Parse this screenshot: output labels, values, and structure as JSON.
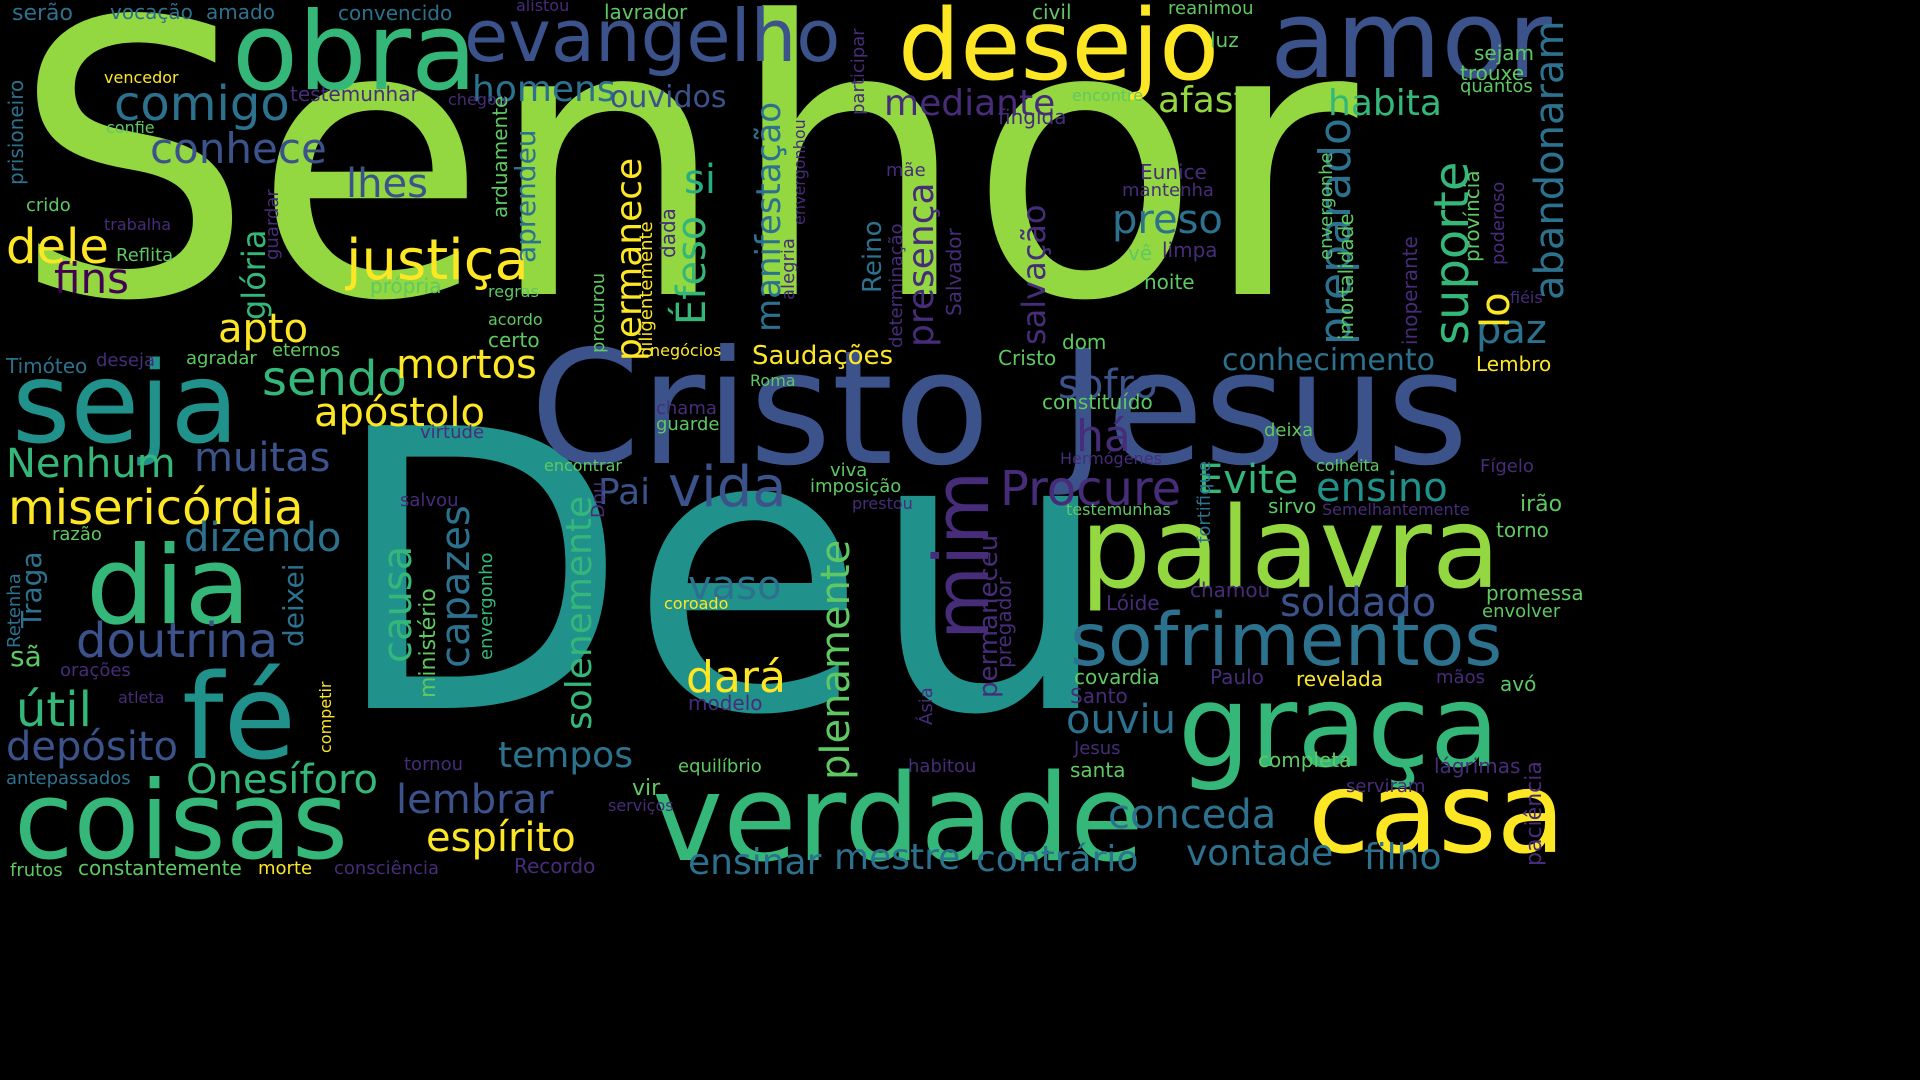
{
  "palette": {
    "background": "#000000",
    "colors": [
      "#93d741",
      "#21918c",
      "#3b528b",
      "#2c728e",
      "#fde725",
      "#5ec962",
      "#35b779",
      "#440154",
      "#472c7a",
      "#27ad81",
      "#1f9e89"
    ]
  },
  "words": [
    {
      "text": "Senhor",
      "color": "#93d741",
      "vertical": false
    },
    {
      "text": "Deu",
      "color": "#21918c",
      "vertical": false
    },
    {
      "text": "Cristo",
      "color": "#3b528b",
      "vertical": false
    },
    {
      "text": "Jesus",
      "color": "#3b528b",
      "vertical": false
    },
    {
      "text": "obra",
      "color": "#35b779",
      "vertical": false
    },
    {
      "text": "evangelho",
      "color": "#3b528b",
      "vertical": false
    },
    {
      "text": "desejo",
      "color": "#fde725",
      "vertical": false
    },
    {
      "text": "amor",
      "color": "#3b528b",
      "vertical": false
    },
    {
      "text": "seja",
      "color": "#21918c",
      "vertical": false
    },
    {
      "text": "dia",
      "color": "#35b779",
      "vertical": false
    },
    {
      "text": "fé",
      "color": "#21918c",
      "vertical": false
    },
    {
      "text": "coisas",
      "color": "#35b779",
      "vertical": false
    },
    {
      "text": "verdade",
      "color": "#35b779",
      "vertical": false
    },
    {
      "text": "casa",
      "color": "#fde725",
      "vertical": false
    },
    {
      "text": "palavra",
      "color": "#93d741",
      "vertical": false
    },
    {
      "text": "graça",
      "color": "#35b779",
      "vertical": false
    },
    {
      "text": "sofrimentos",
      "color": "#2c728e",
      "vertical": false
    },
    {
      "text": "comigo",
      "color": "#2c728e",
      "vertical": false
    },
    {
      "text": "homens",
      "color": "#2c728e",
      "vertical": false
    },
    {
      "text": "ouvidos",
      "color": "#3b528b",
      "vertical": false
    },
    {
      "text": "mediante",
      "color": "#472c7a",
      "vertical": false
    },
    {
      "text": "afaste",
      "color": "#93d741",
      "vertical": false
    },
    {
      "text": "habita",
      "color": "#35b779",
      "vertical": false
    },
    {
      "text": "conhece",
      "color": "#3b528b",
      "vertical": false
    },
    {
      "text": "lhes",
      "color": "#3b528b",
      "vertical": false
    },
    {
      "text": "justiça",
      "color": "#fde725",
      "vertical": false
    },
    {
      "text": "dele",
      "color": "#fde725",
      "vertical": false
    },
    {
      "text": "fins",
      "color": "#440154",
      "vertical": false
    },
    {
      "text": "apto",
      "color": "#fde725",
      "vertical": false
    },
    {
      "text": "sendo",
      "color": "#35b779",
      "vertical": false
    },
    {
      "text": "mortos",
      "color": "#fde725",
      "vertical": false
    },
    {
      "text": "apóstolo",
      "color": "#fde725",
      "vertical": false
    },
    {
      "text": "Nenhum",
      "color": "#35b779",
      "vertical": false
    },
    {
      "text": "muitas",
      "color": "#3b528b",
      "vertical": false
    },
    {
      "text": "misericórdia",
      "color": "#fde725",
      "vertical": false
    },
    {
      "text": "dizendo",
      "color": "#2c728e",
      "vertical": false
    },
    {
      "text": "doutrina",
      "color": "#3b528b",
      "vertical": false
    },
    {
      "text": "útil",
      "color": "#35b779",
      "vertical": false
    },
    {
      "text": "depósito",
      "color": "#3b528b",
      "vertical": false
    },
    {
      "text": "Onesíforo",
      "color": "#35b779",
      "vertical": false
    },
    {
      "text": "lembrar",
      "color": "#3b528b",
      "vertical": false
    },
    {
      "text": "espírito",
      "color": "#fde725",
      "vertical": false
    },
    {
      "text": "tempos",
      "color": "#2c728e",
      "vertical": false
    },
    {
      "text": "vida",
      "color": "#3b528b",
      "vertical": false
    },
    {
      "text": "Pai",
      "color": "#3b528b",
      "vertical": false
    },
    {
      "text": "vaso",
      "color": "#2c728e",
      "vertical": false
    },
    {
      "text": "dará",
      "color": "#fde725",
      "vertical": false
    },
    {
      "text": "Procure",
      "color": "#472c7a",
      "vertical": false
    },
    {
      "text": "sofro",
      "color": "#3b528b",
      "vertical": false
    },
    {
      "text": "há",
      "color": "#472c7a",
      "vertical": false
    },
    {
      "text": "Evite",
      "color": "#35b779",
      "vertical": false
    },
    {
      "text": "ensino",
      "color": "#21918c",
      "vertical": false
    },
    {
      "text": "preso",
      "color": "#2c728e",
      "vertical": false
    },
    {
      "text": "conhecimento",
      "color": "#2c728e",
      "vertical": false
    },
    {
      "text": "paz",
      "color": "#2c728e",
      "vertical": false
    },
    {
      "text": "soldado",
      "color": "#3b528b",
      "vertical": false
    },
    {
      "text": "ouviu",
      "color": "#2c728e",
      "vertical": false
    },
    {
      "text": "conceda",
      "color": "#2c728e",
      "vertical": false
    },
    {
      "text": "ensinar",
      "color": "#2c728e",
      "vertical": false
    },
    {
      "text": "mestre",
      "color": "#2c728e",
      "vertical": false
    },
    {
      "text": "contrário",
      "color": "#2c728e",
      "vertical": false
    },
    {
      "text": "vontade",
      "color": "#2c728e",
      "vertical": false
    },
    {
      "text": "filho",
      "color": "#2c728e",
      "vertical": false
    },
    {
      "text": "Saudações",
      "color": "#fde725",
      "vertical": false
    },
    {
      "text": "si",
      "color": "#27ad81",
      "vertical": false
    },
    {
      "text": "serão",
      "color": "#2c728e",
      "vertical": false
    },
    {
      "text": "vocação",
      "color": "#2c728e",
      "vertical": false
    },
    {
      "text": "amado",
      "color": "#2c728e",
      "vertical": false
    },
    {
      "text": "convencido",
      "color": "#2c728e",
      "vertical": false
    },
    {
      "text": "alistou",
      "color": "#472c7a",
      "vertical": false
    },
    {
      "text": "lavrador",
      "color": "#5ec962",
      "vertical": false
    },
    {
      "text": "civil",
      "color": "#5ec962",
      "vertical": false
    },
    {
      "text": "reanimou",
      "color": "#5ec962",
      "vertical": false
    },
    {
      "text": "luz",
      "color": "#5ec962",
      "vertical": false
    },
    {
      "text": "sejam",
      "color": "#5ec962",
      "vertical": false
    },
    {
      "text": "trouxe",
      "color": "#5ec962",
      "vertical": false
    },
    {
      "text": "quantos",
      "color": "#5ec962",
      "vertical": false
    },
    {
      "text": "vencedor",
      "color": "#fde725",
      "vertical": false
    },
    {
      "text": "testemunhar",
      "color": "#472c7a",
      "vertical": false
    },
    {
      "text": "chegou",
      "color": "#472c7a",
      "vertical": false
    },
    {
      "text": "confie",
      "color": "#5ec962",
      "vertical": false
    },
    {
      "text": "encontre",
      "color": "#5ec962",
      "vertical": false
    },
    {
      "text": "fingida",
      "color": "#472c7a",
      "vertical": false
    },
    {
      "text": "mãe",
      "color": "#472c7a",
      "vertical": false
    },
    {
      "text": "Eunice",
      "color": "#472c7a",
      "vertical": false
    },
    {
      "text": "mantenha",
      "color": "#472c7a",
      "vertical": false
    },
    {
      "text": "crido",
      "color": "#5ec962",
      "vertical": false
    },
    {
      "text": "trabalha",
      "color": "#472c7a",
      "vertical": false
    },
    {
      "text": "Reflita",
      "color": "#5ec962",
      "vertical": false
    },
    {
      "text": "vê",
      "color": "#5ec962",
      "vertical": false
    },
    {
      "text": "limpa",
      "color": "#472c7a",
      "vertical": false
    },
    {
      "text": "noite",
      "color": "#5ec962",
      "vertical": false
    },
    {
      "text": "própria",
      "color": "#5ec962",
      "vertical": false
    },
    {
      "text": "regras",
      "color": "#5ec962",
      "vertical": false
    },
    {
      "text": "acordo",
      "color": "#5ec962",
      "vertical": false
    },
    {
      "text": "certo",
      "color": "#5ec962",
      "vertical": false
    },
    {
      "text": "dom",
      "color": "#5ec962",
      "vertical": false
    },
    {
      "text": "Cristo",
      "color": "#5ec962",
      "vertical": false
    },
    {
      "text": "fiéis",
      "color": "#472c7a",
      "vertical": false
    },
    {
      "text": "Lembro",
      "color": "#fde725",
      "vertical": false
    },
    {
      "text": "Timóteo",
      "color": "#2c728e",
      "vertical": false
    },
    {
      "text": "deseja",
      "color": "#472c7a",
      "vertical": false
    },
    {
      "text": "agradar",
      "color": "#5ec962",
      "vertical": false
    },
    {
      "text": "eternos",
      "color": "#5ec962",
      "vertical": false
    },
    {
      "text": "negócios",
      "color": "#fde725",
      "vertical": false
    },
    {
      "text": "Roma",
      "color": "#5ec962",
      "vertical": false
    },
    {
      "text": "chama",
      "color": "#472c7a",
      "vertical": false
    },
    {
      "text": "guarde",
      "color": "#5ec962",
      "vertical": false
    },
    {
      "text": "virtude",
      "color": "#472c7a",
      "vertical": false
    },
    {
      "text": "constituído",
      "color": "#5ec962",
      "vertical": false
    },
    {
      "text": "deixa",
      "color": "#5ec962",
      "vertical": false
    },
    {
      "text": "Hermógenes",
      "color": "#472c7a",
      "vertical": false
    },
    {
      "text": "colheita",
      "color": "#5ec962",
      "vertical": false
    },
    {
      "text": "Fígelo",
      "color": "#472c7a",
      "vertical": false
    },
    {
      "text": "encontrar",
      "color": "#5ec962",
      "vertical": false
    },
    {
      "text": "viva",
      "color": "#5ec962",
      "vertical": false
    },
    {
      "text": "imposição",
      "color": "#5ec962",
      "vertical": false
    },
    {
      "text": "prestou",
      "color": "#472c7a",
      "vertical": false
    },
    {
      "text": "salvou",
      "color": "#472c7a",
      "vertical": false
    },
    {
      "text": "testemunhas",
      "color": "#5ec962",
      "vertical": false
    },
    {
      "text": "sirvo",
      "color": "#5ec962",
      "vertical": false
    },
    {
      "text": "Semelhantemente",
      "color": "#472c7a",
      "vertical": false
    },
    {
      "text": "irão",
      "color": "#5ec962",
      "vertical": false
    },
    {
      "text": "razão",
      "color": "#5ec962",
      "vertical": false
    },
    {
      "text": "sã",
      "color": "#5ec962",
      "vertical": false
    },
    {
      "text": "orações",
      "color": "#472c7a",
      "vertical": false
    },
    {
      "text": "atleta",
      "color": "#472c7a",
      "vertical": false
    },
    {
      "text": "antepassados",
      "color": "#2c728e",
      "vertical": false
    },
    {
      "text": "frutos",
      "color": "#5ec962",
      "vertical": false
    },
    {
      "text": "constantemente",
      "color": "#5ec962",
      "vertical": false
    },
    {
      "text": "morte",
      "color": "#fde725",
      "vertical": false
    },
    {
      "text": "consciência",
      "color": "#472c7a",
      "vertical": false
    },
    {
      "text": "Recordo",
      "color": "#472c7a",
      "vertical": false
    },
    {
      "text": "coroado",
      "color": "#fde725",
      "vertical": false
    },
    {
      "text": "modelo",
      "color": "#472c7a",
      "vertical": false
    },
    {
      "text": "tornou",
      "color": "#472c7a",
      "vertical": false
    },
    {
      "text": "vir",
      "color": "#5ec962",
      "vertical": false
    },
    {
      "text": "serviços",
      "color": "#472c7a",
      "vertical": false
    },
    {
      "text": "equilíbrio",
      "color": "#5ec962",
      "vertical": false
    },
    {
      "text": "habitou",
      "color": "#472c7a",
      "vertical": false
    },
    {
      "text": "Lóide",
      "color": "#472c7a",
      "vertical": false
    },
    {
      "text": "chamou",
      "color": "#472c7a",
      "vertical": false
    },
    {
      "text": "promessa",
      "color": "#5ec962",
      "vertical": false
    },
    {
      "text": "envolver",
      "color": "#5ec962",
      "vertical": false
    },
    {
      "text": "covardia",
      "color": "#5ec962",
      "vertical": false
    },
    {
      "text": "Paulo",
      "color": "#472c7a",
      "vertical": false
    },
    {
      "text": "revelada",
      "color": "#fde725",
      "vertical": false
    },
    {
      "text": "mãos",
      "color": "#472c7a",
      "vertical": false
    },
    {
      "text": "avó",
      "color": "#5ec962",
      "vertical": false
    },
    {
      "text": "Santo",
      "color": "#472c7a",
      "vertical": false
    },
    {
      "text": "Jesus",
      "color": "#472c7a",
      "vertical": false
    },
    {
      "text": "santa",
      "color": "#5ec962",
      "vertical": false
    },
    {
      "text": "completa",
      "color": "#5ec962",
      "vertical": false
    },
    {
      "text": "lágrimas",
      "color": "#472c7a",
      "vertical": false
    },
    {
      "text": "serviram",
      "color": "#472c7a",
      "vertical": false
    },
    {
      "text": "torno",
      "color": "#5ec962",
      "vertical": false
    },
    {
      "text": "salvação",
      "color": "#472c7a",
      "vertical": true
    },
    {
      "text": "presença",
      "color": "#472c7a",
      "vertical": true
    },
    {
      "text": "Reino",
      "color": "#2c728e",
      "vertical": true
    },
    {
      "text": "determinação",
      "color": "#472c7a",
      "vertical": true
    },
    {
      "text": "Salvador",
      "color": "#472c7a",
      "vertical": true
    },
    {
      "text": "manifestação",
      "color": "#2c728e",
      "vertical": true
    },
    {
      "text": "Éfeso",
      "color": "#35b779",
      "vertical": true
    },
    {
      "text": "permanece",
      "color": "#fde725",
      "vertical": true
    },
    {
      "text": "diligentemente",
      "color": "#fde725",
      "vertical": true
    },
    {
      "text": "aprendeu",
      "color": "#2c728e",
      "vertical": true
    },
    {
      "text": "arduamente",
      "color": "#5ec962",
      "vertical": true
    },
    {
      "text": "dada",
      "color": "#472c7a",
      "vertical": true
    },
    {
      "text": "envergonhou",
      "color": "#472c7a",
      "vertical": true
    },
    {
      "text": "alegria",
      "color": "#472c7a",
      "vertical": true
    },
    {
      "text": "participar",
      "color": "#472c7a",
      "vertical": true
    },
    {
      "text": "procurou",
      "color": "#5ec962",
      "vertical": true
    },
    {
      "text": "preparado",
      "color": "#2c728e",
      "vertical": true
    },
    {
      "text": "suporte",
      "color": "#35b779",
      "vertical": true
    },
    {
      "text": "abandonaram",
      "color": "#2c728e",
      "vertical": true
    },
    {
      "text": "lo",
      "color": "#fde725",
      "vertical": true
    },
    {
      "text": "envergonhe",
      "color": "#5ec962",
      "vertical": true
    },
    {
      "text": "imortalidade",
      "color": "#5ec962",
      "vertical": true
    },
    {
      "text": "inoperante",
      "color": "#472c7a",
      "vertical": true
    },
    {
      "text": "província",
      "color": "#5ec962",
      "vertical": true
    },
    {
      "text": "poderoso",
      "color": "#472c7a",
      "vertical": true
    },
    {
      "text": "glória",
      "color": "#35b779",
      "vertical": true
    },
    {
      "text": "guardar",
      "color": "#472c7a",
      "vertical": true
    },
    {
      "text": "prisioneiro",
      "color": "#2c728e",
      "vertical": true
    },
    {
      "text": "mim",
      "color": "#472c7a",
      "vertical": true
    },
    {
      "text": "plenamente",
      "color": "#5ec962",
      "vertical": true
    },
    {
      "text": "solenemente",
      "color": "#35b779",
      "vertical": true
    },
    {
      "text": "causa",
      "color": "#35b779",
      "vertical": true
    },
    {
      "text": "capazes",
      "color": "#2c728e",
      "vertical": true
    },
    {
      "text": "ministério",
      "color": "#5ec962",
      "vertical": true
    },
    {
      "text": "deixei",
      "color": "#2c728e",
      "vertical": true
    },
    {
      "text": "Traga",
      "color": "#2c728e",
      "vertical": true
    },
    {
      "text": "Retenha",
      "color": "#2c728e",
      "vertical": true
    },
    {
      "text": "competir",
      "color": "#fde725",
      "vertical": true
    },
    {
      "text": "envergonho",
      "color": "#35b779",
      "vertical": true
    },
    {
      "text": "Dou",
      "color": "#472c7a",
      "vertical": true
    },
    {
      "text": "Ásia",
      "color": "#472c7a",
      "vertical": true
    },
    {
      "text": "permaneceu",
      "color": "#472c7a",
      "vertical": true
    },
    {
      "text": "pregador",
      "color": "#472c7a",
      "vertical": true
    },
    {
      "text": "fortifique",
      "color": "#2c728e",
      "vertical": true
    },
    {
      "text": "paciência",
      "color": "#472c7a",
      "vertical": true
    }
  ]
}
